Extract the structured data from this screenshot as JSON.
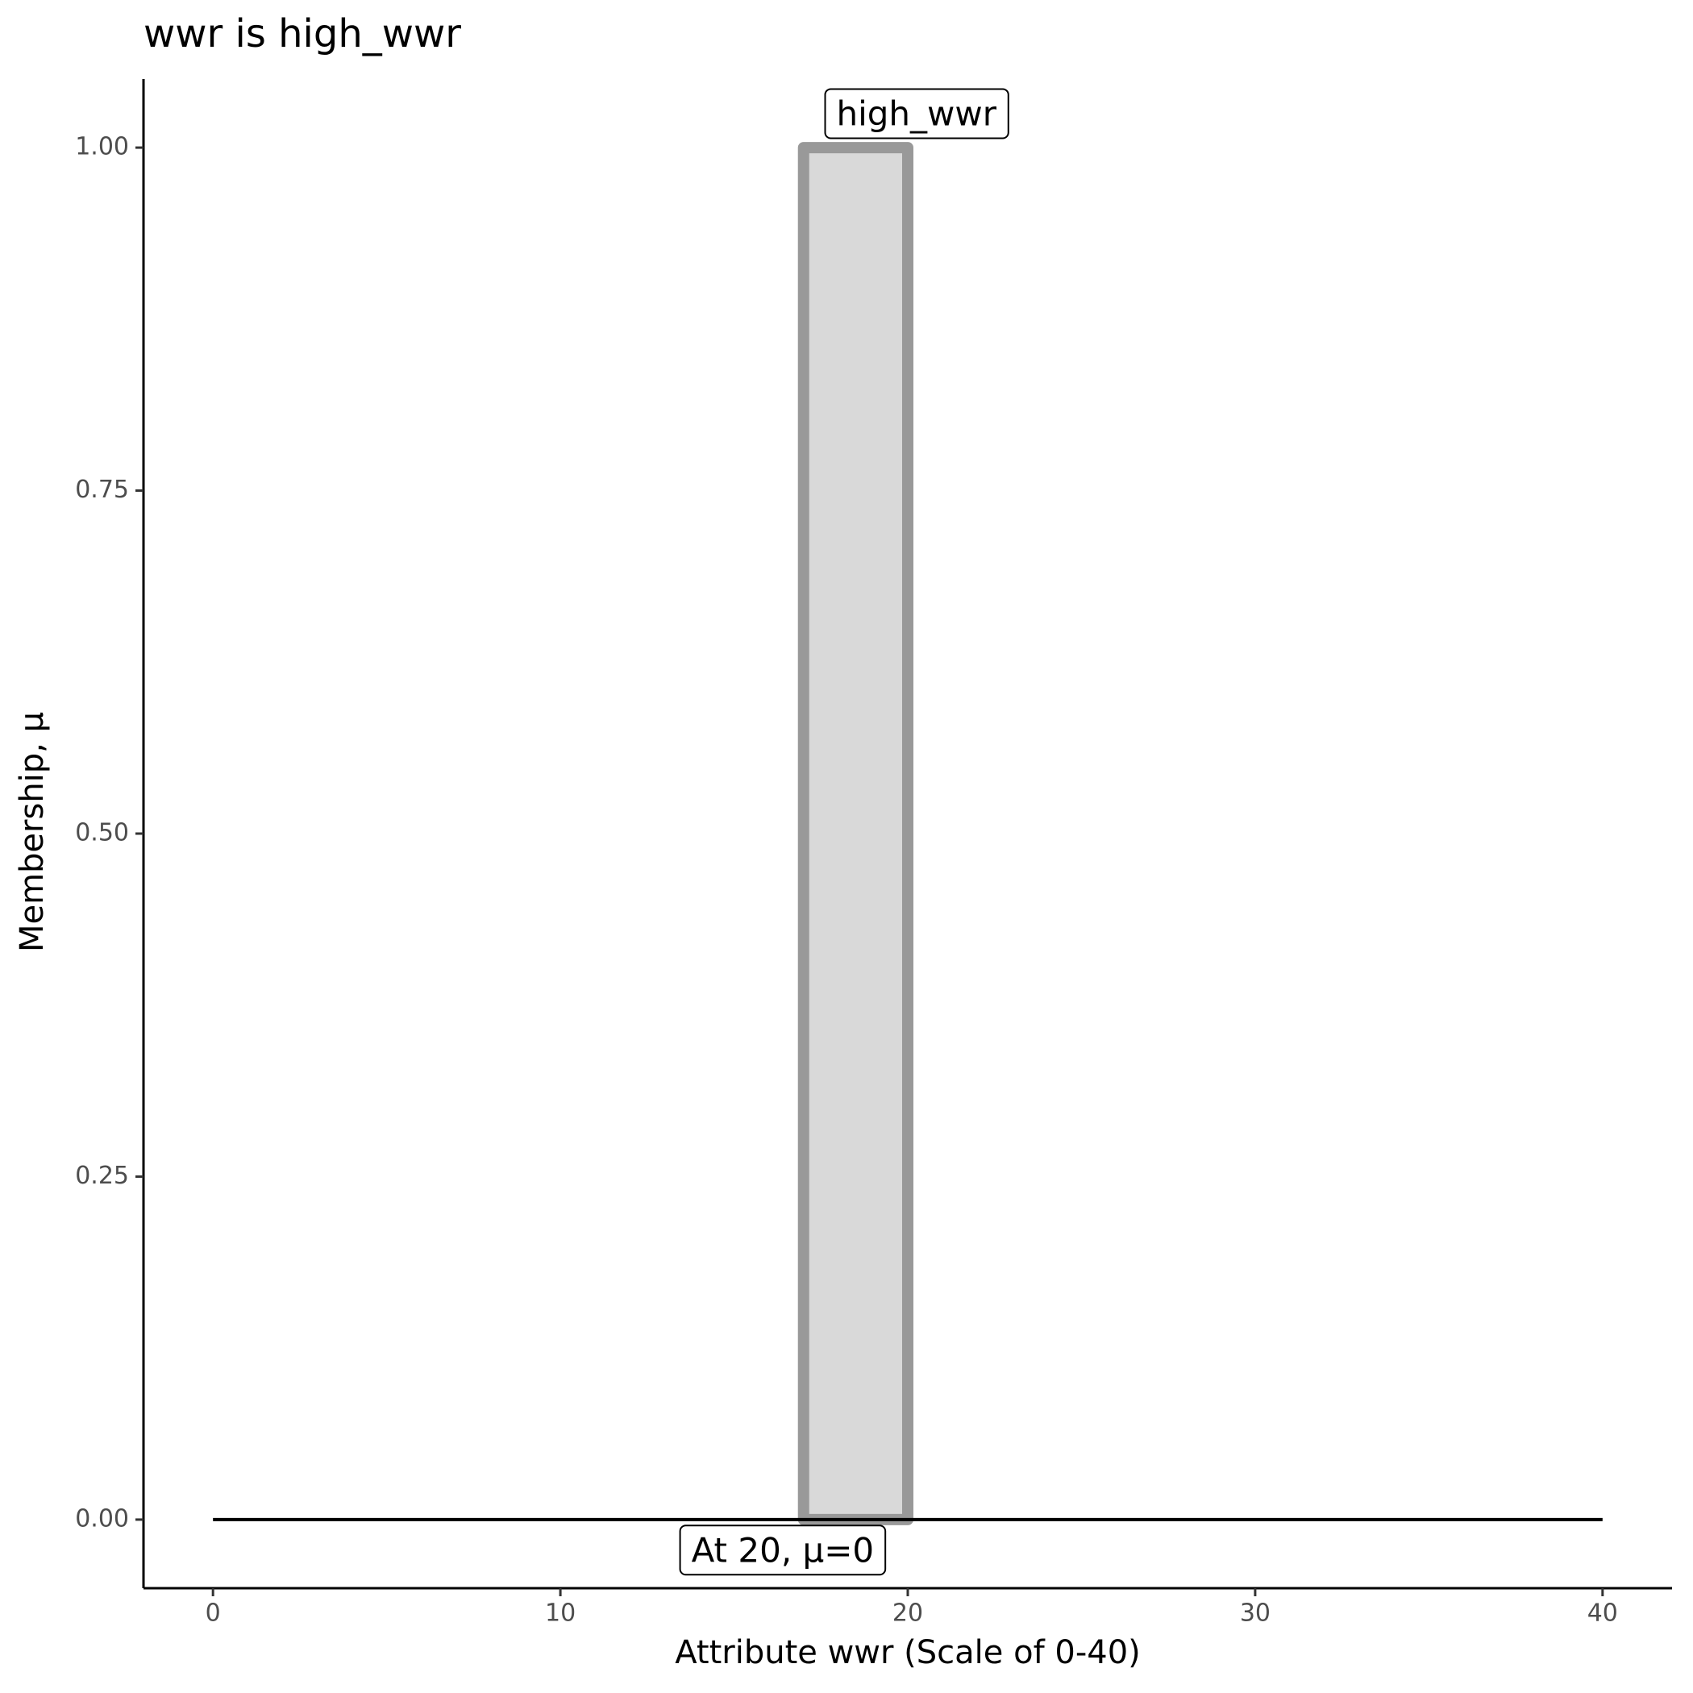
{
  "chart_data": {
    "type": "area",
    "title": "wwr is high_wwr",
    "x_label": "Attribute wwr (Scale of 0-40)",
    "y_label": "Membership, μ",
    "series": [
      {
        "x": [
          17,
          17,
          20,
          20
        ],
        "values": [
          0,
          1,
          1,
          0
        ],
        "color": "#999999",
        "fill": "#d9d9d9"
      },
      {
        "x": [
          0,
          40
        ],
        "values": [
          0,
          0
        ],
        "color": "#000000"
      }
    ],
    "annotations": [
      {
        "text": "high_wwr",
        "x": 20.25,
        "y": 1.023
      },
      {
        "text": "At 20, μ=0",
        "x": 16.4,
        "y": -0.024
      }
    ],
    "xlim": [
      -2,
      42
    ],
    "ylim": [
      -0.05,
      1.05
    ],
    "xticks": [
      0,
      10,
      20,
      30,
      40
    ],
    "yticks": [
      {
        "value": 0,
        "label": "0.00"
      },
      {
        "value": 0.25,
        "label": "0.25"
      },
      {
        "value": 0.5,
        "label": "0.50"
      },
      {
        "value": 0.75,
        "label": "0.75"
      },
      {
        "value": 1,
        "label": "1.00"
      }
    ],
    "grid": false
  }
}
